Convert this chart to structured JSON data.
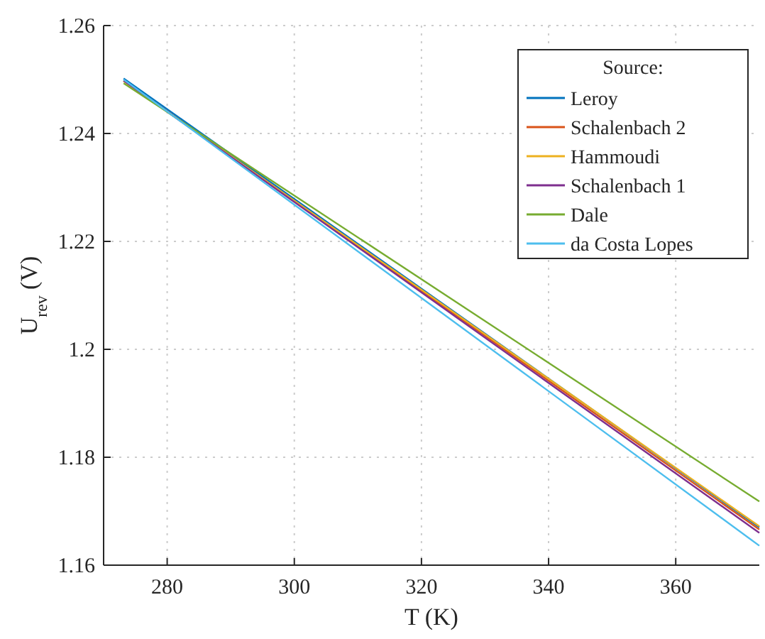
{
  "chart_data": {
    "type": "line",
    "xlabel": "T (K)",
    "ylabel": "U$_{rev}$ (V)",
    "legend_title": "Source:",
    "x": [
      273.15,
      373.15
    ],
    "series": [
      {
        "name": "Leroy",
        "color": "#0072bd",
        "values": [
          1.2502,
          1.167
        ]
      },
      {
        "name": "Schalenbach 2",
        "color": "#d95319",
        "values": [
          1.2498,
          1.1666
        ]
      },
      {
        "name": "Hammoudi",
        "color": "#edb120",
        "values": [
          1.2497,
          1.1672
        ]
      },
      {
        "name": "Schalenbach 1",
        "color": "#7e2f8e",
        "values": [
          1.2498,
          1.166
        ]
      },
      {
        "name": "Dale",
        "color": "#77ac30",
        "values": [
          1.2493,
          1.1718
        ]
      },
      {
        "name": "da Costa Lopes",
        "color": "#4dbeee",
        "values": [
          1.25,
          1.1636
        ]
      }
    ],
    "xlim": [
      270,
      373.15
    ],
    "ylim": [
      1.16,
      1.26
    ],
    "xticks": [
      280,
      300,
      320,
      340,
      360
    ],
    "yticks": [
      1.16,
      1.18,
      {
        "value": 1.2,
        "label": "1.2"
      },
      1.22,
      1.24,
      1.26
    ],
    "grid": true,
    "legend": "top right",
    "line_style": "solid",
    "marker": "none"
  }
}
